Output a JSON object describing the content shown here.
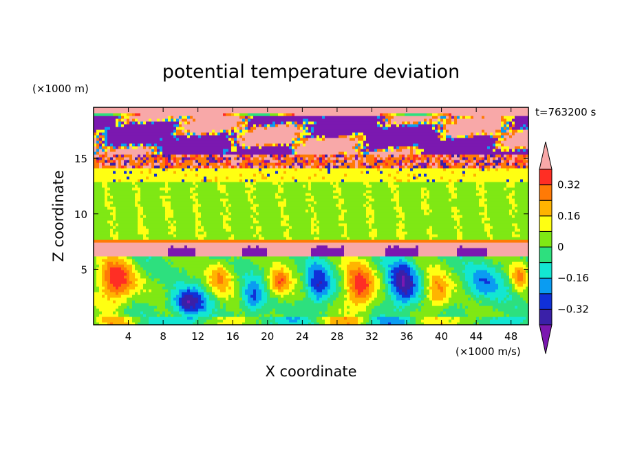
{
  "chart_data": {
    "type": "heatmap",
    "title": "potential temperature deviation",
    "xlabel": "X coordinate",
    "ylabel": "Z coordinate",
    "x_unit": "(×1000 m/s)",
    "y_unit": "(×1000 m)",
    "time_label": "t=763200 s",
    "xlim": [
      0,
      50
    ],
    "ylim": [
      0,
      19.6
    ],
    "x_ticks": [
      4,
      8,
      12,
      16,
      20,
      24,
      28,
      32,
      36,
      40,
      44,
      48
    ],
    "x_tick_labels": [
      "4",
      "8",
      "12",
      "16",
      "20",
      "24",
      "28",
      "32",
      "36",
      "40",
      "44",
      "48"
    ],
    "y_ticks": [
      5,
      10,
      15
    ],
    "y_tick_labels": [
      "5",
      "10",
      "15"
    ],
    "colorbar": {
      "levels": [
        -0.4,
        -0.32,
        -0.24,
        -0.16,
        -0.08,
        0,
        0.08,
        0.16,
        0.24,
        0.32,
        0.4
      ],
      "colors": [
        "#7b18b0",
        "#3a20a8",
        "#1030d8",
        "#0a9cf2",
        "#13e6d2",
        "#2de07e",
        "#7fe814",
        "#ffff12",
        "#ffb400",
        "#ff7a06",
        "#ff2e24",
        "#f8a8a8"
      ],
      "labels": [
        "0.32",
        "0.16",
        "0",
        "−0.16",
        "−0.32"
      ],
      "label_values": [
        0.32,
        0.16,
        0,
        -0.16,
        -0.32
      ]
    },
    "field_layers": [
      {
        "z_range": [
          18.8,
          19.6
        ],
        "dominant": 0.45,
        "note": "pink cap"
      },
      {
        "z_range": [
          15.5,
          18.8
        ],
        "dominant": -0.45,
        "secondary": 0.45
      },
      {
        "z_range": [
          14.2,
          15.5
        ],
        "dominant": 0.3
      },
      {
        "z_range": [
          12.8,
          14.2
        ],
        "dominant": 0.12
      },
      {
        "z_range": [
          7.8,
          12.8
        ],
        "dominant": 0.02
      },
      {
        "z_range": [
          6.1,
          7.4
        ],
        "dominant": 0.45,
        "secondary": -0.45
      },
      {
        "z_range": [
          0,
          6.1
        ],
        "dominant": 0.0,
        "note": "eddies"
      }
    ],
    "eddies": [
      {
        "x": 2.6,
        "z": 3.9,
        "value": 0.38,
        "rx": 2.4,
        "rz": 2.3
      },
      {
        "x": 10.8,
        "z": 2.0,
        "value": -0.36,
        "rx": 2.3,
        "rz": 1.4
      },
      {
        "x": 14.5,
        "z": 4.3,
        "value": 0.2,
        "rx": 1.7,
        "rz": 1.6
      },
      {
        "x": 18.2,
        "z": 2.4,
        "value": -0.25,
        "rx": 1.4,
        "rz": 1.6
      },
      {
        "x": 21.3,
        "z": 3.8,
        "value": 0.3,
        "rx": 1.3,
        "rz": 1.4
      },
      {
        "x": 25.8,
        "z": 3.6,
        "value": -0.3,
        "rx": 1.6,
        "rz": 2.0
      },
      {
        "x": 30.6,
        "z": 3.4,
        "value": 0.34,
        "rx": 2.0,
        "rz": 2.4
      },
      {
        "x": 35.6,
        "z": 3.7,
        "value": -0.38,
        "rx": 1.9,
        "rz": 2.6
      },
      {
        "x": 39.6,
        "z": 3.0,
        "value": 0.28,
        "rx": 1.6,
        "rz": 2.0
      },
      {
        "x": 44.6,
        "z": 3.7,
        "value": -0.2,
        "rx": 2.4,
        "rz": 1.9
      },
      {
        "x": 48.8,
        "z": 4.4,
        "value": 0.22,
        "rx": 1.0,
        "rz": 1.4
      }
    ]
  }
}
